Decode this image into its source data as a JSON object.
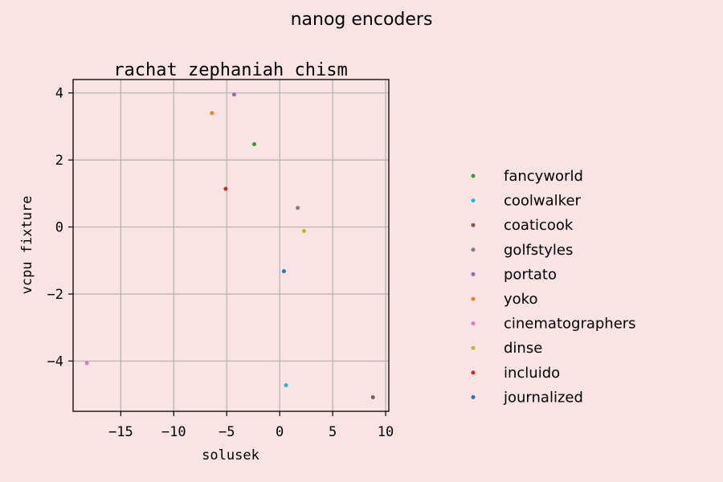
{
  "figure": {
    "suptitle": "nanog encoders",
    "background": "#fae3e3"
  },
  "chart_data": {
    "type": "scatter",
    "title": "rachat zephaniah chism",
    "xlabel": "solusek",
    "ylabel": "vcpu fixture",
    "xlim": [
      -19.5,
      10.3
    ],
    "ylim": [
      -5.5,
      4.4
    ],
    "xticks": [
      -15,
      -10,
      -5,
      0,
      5,
      10
    ],
    "yticks": [
      4,
      2,
      0,
      -2,
      -4
    ],
    "grid": true,
    "legend_position": "right",
    "series": [
      {
        "name": "fancyworld",
        "color": "#2ca02c",
        "x": -2.4,
        "y": 2.47
      },
      {
        "name": "coolwalker",
        "color": "#17becf",
        "x": 0.6,
        "y": -4.72
      },
      {
        "name": "coaticook",
        "color": "#8c564b",
        "x": 8.8,
        "y": -5.08
      },
      {
        "name": "golfstyles",
        "color": "#7f7f7f",
        "x": 1.7,
        "y": 0.57
      },
      {
        "name": "portato",
        "color": "#9467bd",
        "x": -4.3,
        "y": 3.95
      },
      {
        "name": "yoko",
        "color": "#ff7f0e",
        "x": -6.4,
        "y": 3.4
      },
      {
        "name": "cinematographers",
        "color": "#e377c2",
        "x": -18.2,
        "y": -4.06
      },
      {
        "name": "dinse",
        "color": "#bcbd22",
        "x": 2.3,
        "y": -0.12
      },
      {
        "name": "incluido",
        "color": "#d62728",
        "x": -5.1,
        "y": 1.14
      },
      {
        "name": "journalized",
        "color": "#1f77b4",
        "x": 0.4,
        "y": -1.32
      }
    ]
  }
}
